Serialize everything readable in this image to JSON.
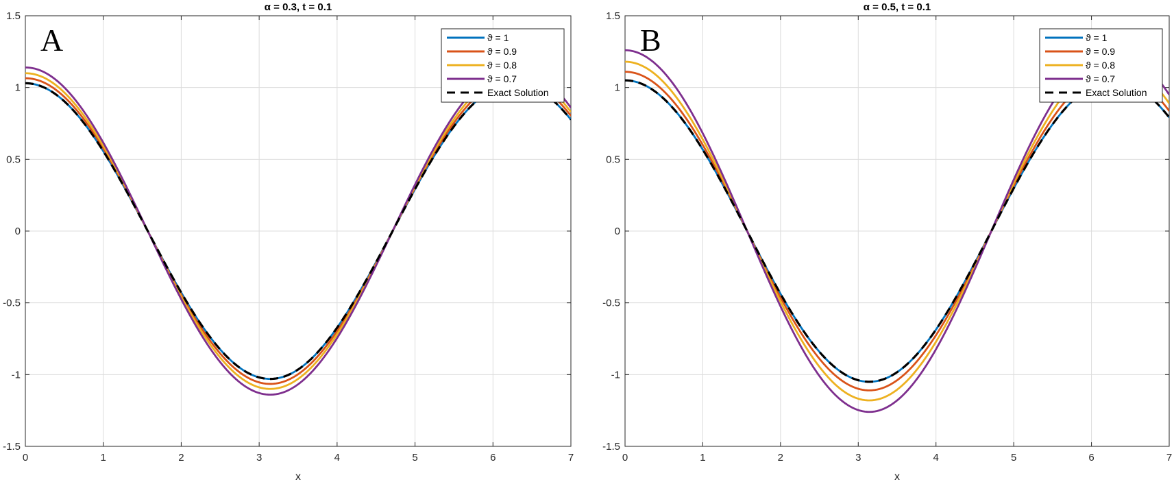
{
  "chart_data": [
    {
      "type": "line",
      "panel_label": "A",
      "title": "α = 0.3, t = 0.1",
      "xlabel": "x",
      "ylabel": "",
      "xlim": [
        0,
        7
      ],
      "ylim": [
        -1.5,
        1.5
      ],
      "xticks": [
        "0",
        "1",
        "2",
        "3",
        "4",
        "5",
        "6",
        "7"
      ],
      "yticks": [
        "-1.5",
        "-1",
        "-0.5",
        "0",
        "0.5",
        "1",
        "1.5"
      ],
      "grid": true,
      "legend_position": "top-right",
      "x": [
        0,
        0.5,
        1,
        1.5707963,
        2,
        2.5,
        3,
        3.1415927,
        3.5,
        4,
        4.712389,
        5,
        5.5,
        6,
        6.2831853
      ],
      "series": [
        {
          "name": "ϑ = 1",
          "color": "#0072BD",
          "dash": "solid",
          "amplitude": 1.03,
          "values": [
            1.03,
            0.904,
            0.557,
            0.0,
            -0.429,
            -0.825,
            -1.02,
            -1.03,
            -0.966,
            -0.673,
            0.0,
            0.292,
            0.729,
            0.989,
            1.03
          ]
        },
        {
          "name": "ϑ = 0.9",
          "color": "#D95319",
          "dash": "solid",
          "amplitude": 1.065,
          "values": [
            1.065,
            0.935,
            0.575,
            0.0,
            -0.443,
            -0.853,
            -1.054,
            -1.065,
            -0.999,
            -0.696,
            0.0,
            0.302,
            0.754,
            1.023,
            1.065
          ]
        },
        {
          "name": "ϑ = 0.8",
          "color": "#EDB120",
          "dash": "solid",
          "amplitude": 1.1,
          "values": [
            1.1,
            0.965,
            0.594,
            0.0,
            -0.458,
            -0.881,
            -1.089,
            -1.1,
            -1.032,
            -0.719,
            0.0,
            0.312,
            0.779,
            1.056,
            1.1
          ]
        },
        {
          "name": "ϑ = 0.7",
          "color": "#7E2F8E",
          "dash": "solid",
          "amplitude": 1.14,
          "values": [
            1.14,
            1.0,
            0.616,
            0.0,
            -0.474,
            -0.913,
            -1.129,
            -1.14,
            -1.069,
            -0.745,
            0.0,
            0.323,
            0.807,
            1.095,
            1.14
          ]
        },
        {
          "name": "Exact Solution",
          "color": "#000000",
          "dash": "dashed",
          "amplitude": 1.03,
          "values": [
            1.03,
            0.904,
            0.557,
            0.0,
            -0.429,
            -0.825,
            -1.02,
            -1.03,
            -0.966,
            -0.673,
            0.0,
            0.292,
            0.729,
            0.989,
            1.03
          ]
        }
      ]
    },
    {
      "type": "line",
      "panel_label": "B",
      "title": "α = 0.5, t = 0.1",
      "xlabel": "x",
      "ylabel": "",
      "xlim": [
        0,
        7
      ],
      "ylim": [
        -1.5,
        1.5
      ],
      "xticks": [
        "0",
        "1",
        "2",
        "3",
        "4",
        "5",
        "6",
        "7"
      ],
      "yticks": [
        "-1.5",
        "-1",
        "-0.5",
        "0",
        "0.5",
        "1",
        "1.5"
      ],
      "grid": true,
      "legend_position": "top-right",
      "x": [
        0,
        0.5,
        1,
        1.5707963,
        2,
        2.5,
        3,
        3.1415927,
        3.5,
        4,
        4.712389,
        5,
        5.5,
        6,
        6.2831853
      ],
      "series": [
        {
          "name": "ϑ = 1",
          "color": "#0072BD",
          "dash": "solid",
          "amplitude": 1.05,
          "values": [
            1.05,
            0.921,
            0.567,
            0.0,
            -0.437,
            -0.841,
            -1.04,
            -1.05,
            -0.985,
            -0.686,
            0.0,
            0.298,
            0.744,
            1.008,
            1.05
          ]
        },
        {
          "name": "ϑ = 0.9",
          "color": "#D95319",
          "dash": "solid",
          "amplitude": 1.11,
          "values": [
            1.11,
            0.974,
            0.6,
            0.0,
            -0.462,
            -0.889,
            -1.099,
            -1.11,
            -1.041,
            -0.726,
            0.0,
            0.315,
            0.786,
            1.066,
            1.11
          ]
        },
        {
          "name": "ϑ = 0.8",
          "color": "#EDB120",
          "dash": "solid",
          "amplitude": 1.18,
          "values": [
            1.18,
            1.036,
            0.638,
            0.0,
            -0.491,
            -0.945,
            -1.168,
            -1.18,
            -1.107,
            -0.771,
            0.0,
            0.335,
            0.836,
            1.133,
            1.18
          ]
        },
        {
          "name": "ϑ = 0.7",
          "color": "#7E2F8E",
          "dash": "solid",
          "amplitude": 1.26,
          "values": [
            1.26,
            1.106,
            0.681,
            0.0,
            -0.524,
            -1.009,
            -1.247,
            -1.26,
            -1.182,
            -0.824,
            0.0,
            0.357,
            0.893,
            1.21,
            1.26
          ]
        },
        {
          "name": "Exact Solution",
          "color": "#000000",
          "dash": "dashed",
          "amplitude": 1.05,
          "values": [
            1.05,
            0.921,
            0.567,
            0.0,
            -0.437,
            -0.841,
            -1.04,
            -1.05,
            -0.985,
            -0.686,
            0.0,
            0.298,
            0.744,
            1.008,
            1.05
          ]
        }
      ]
    }
  ]
}
